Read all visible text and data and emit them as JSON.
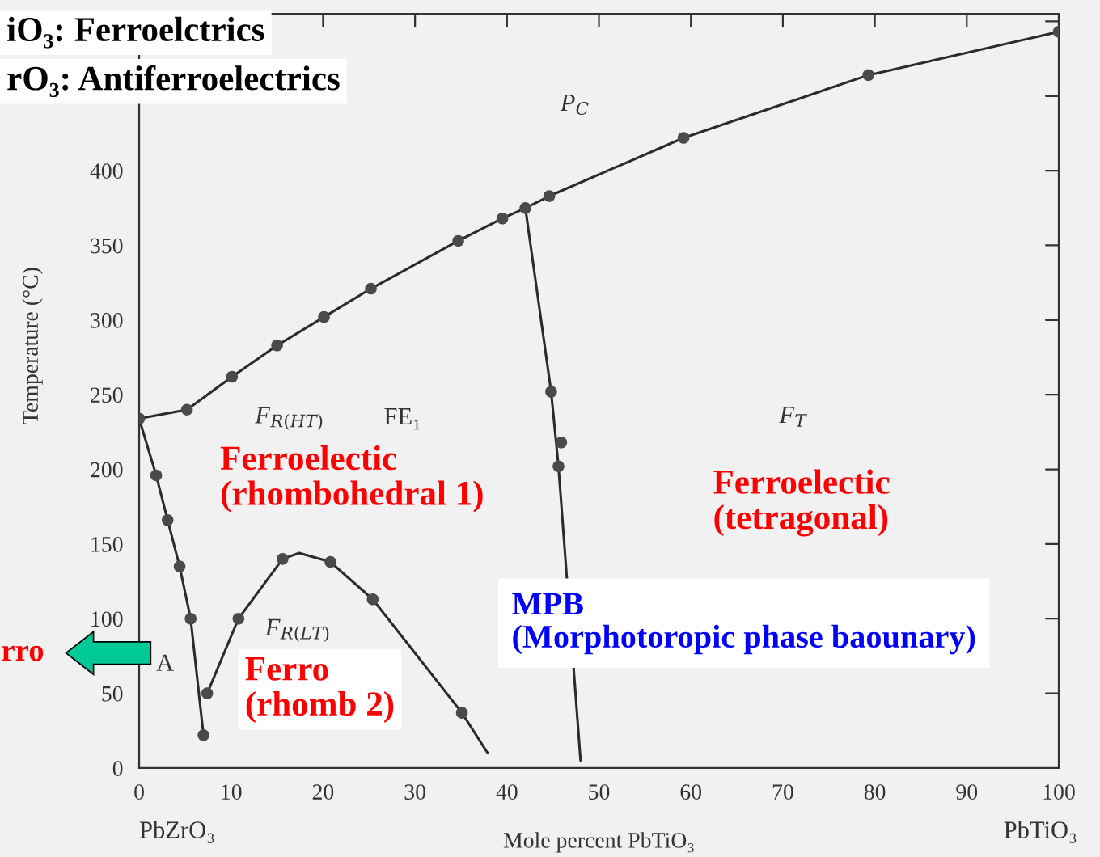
{
  "chart_data": {
    "type": "line",
    "xlabel": "Mole percent PbTiO₃",
    "ylabel": "Temperature (°C)",
    "xlim": [
      0,
      100
    ],
    "xticks": [
      0,
      10,
      20,
      30,
      40,
      50,
      60,
      70,
      80,
      90,
      100
    ],
    "ylim": [
      0,
      505
    ],
    "yticks": [
      0,
      50,
      100,
      150,
      200,
      250,
      300,
      350,
      400
    ],
    "tick_labels": "xy",
    "grid": false,
    "marker": "none",
    "line_style": "solid",
    "series": [
      {
        "color": "#2b2b2b",
        "x": [
          0,
          5.2,
          10.1,
          15,
          20.1,
          25.2,
          34.7,
          39.5,
          42.0,
          44.6,
          59.2,
          79.3,
          100
        ],
        "values": [
          234,
          240,
          262,
          283,
          302,
          321,
          353,
          368,
          375,
          383,
          422,
          464,
          493
        ]
      },
      {
        "color": "#2b2b2b",
        "x": [
          42.0,
          44.8,
          45.6,
          48.0
        ],
        "values": [
          375,
          252,
          202,
          5
        ]
      },
      {
        "color": "#2b2b2b",
        "x": [
          0,
          1.85,
          3.1,
          4.4,
          5.6,
          7.0
        ],
        "values": [
          234,
          196,
          166,
          135,
          100,
          22
        ]
      },
      {
        "color": "#2b2b2b",
        "x": [
          7.4,
          10.8,
          15.6,
          17.4,
          20.8,
          25.4,
          35.1,
          37.9
        ],
        "values": [
          50,
          100,
          140,
          144,
          138,
          113,
          37,
          10
        ]
      },
      {
        "type": "scatter",
        "marker": "circle",
        "color": "#4a4a4a",
        "x": [
          0,
          5.2,
          10.1,
          15,
          20.1,
          25.2,
          34.7,
          39.5,
          42.0,
          44.6,
          59.2,
          79.3,
          100,
          44.8,
          45.9,
          45.6,
          1.85,
          3.1,
          4.4,
          5.6,
          7.0,
          7.4,
          10.8,
          15.6,
          20.8,
          25.4,
          35.1
        ],
        "values": [
          234,
          240,
          262,
          283,
          302,
          321,
          353,
          368,
          375,
          383,
          422,
          464,
          493,
          252,
          218,
          202,
          196,
          166,
          135,
          100,
          22,
          50,
          100,
          140,
          138,
          113,
          37
        ]
      }
    ],
    "annotations": [
      "iO₃: Ferroelctrics",
      "rO₃: Antiferroelectrics",
      "P$_{C}$",
      "F$_{R(HT)}$",
      "FE₁",
      "F$_{T}$",
      "F$_{R(LT)}$",
      "A",
      "Ferroelectic\n(rhombohedral 1)",
      "Ferroelectic\n(tetragonal)",
      "Ferro\n(rhomb 2)",
      "MPB\n(Morphotoropic phase baounary)",
      "rro",
      "PbZrO₃",
      "PbTiO₃"
    ]
  }
}
